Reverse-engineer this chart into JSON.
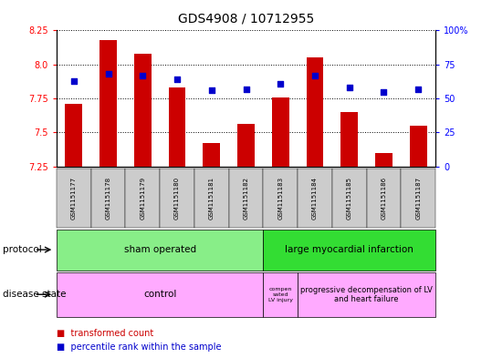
{
  "title": "GDS4908 / 10712955",
  "samples": [
    "GSM1151177",
    "GSM1151178",
    "GSM1151179",
    "GSM1151180",
    "GSM1151181",
    "GSM1151182",
    "GSM1151183",
    "GSM1151184",
    "GSM1151185",
    "GSM1151186",
    "GSM1151187"
  ],
  "transformed_count": [
    7.71,
    8.18,
    8.08,
    7.83,
    7.42,
    7.56,
    7.76,
    8.05,
    7.65,
    7.35,
    7.55
  ],
  "percentile_rank": [
    63,
    68,
    67,
    64,
    56,
    57,
    61,
    67,
    58,
    55,
    57
  ],
  "ylim_left": [
    7.25,
    8.25
  ],
  "ylim_right": [
    0,
    100
  ],
  "yticks_left": [
    7.25,
    7.5,
    7.75,
    8.0,
    8.25
  ],
  "yticks_right": [
    0,
    25,
    50,
    75,
    100
  ],
  "bar_color": "#cc0000",
  "dot_color": "#0000cc",
  "bar_bottom": 7.25,
  "sham_color": "#88ee88",
  "lmi_color": "#33dd33",
  "disease_color": "#ffaaff",
  "tick_bg_color": "#cccccc",
  "protocol_label": "protocol",
  "disease_label": "disease state"
}
